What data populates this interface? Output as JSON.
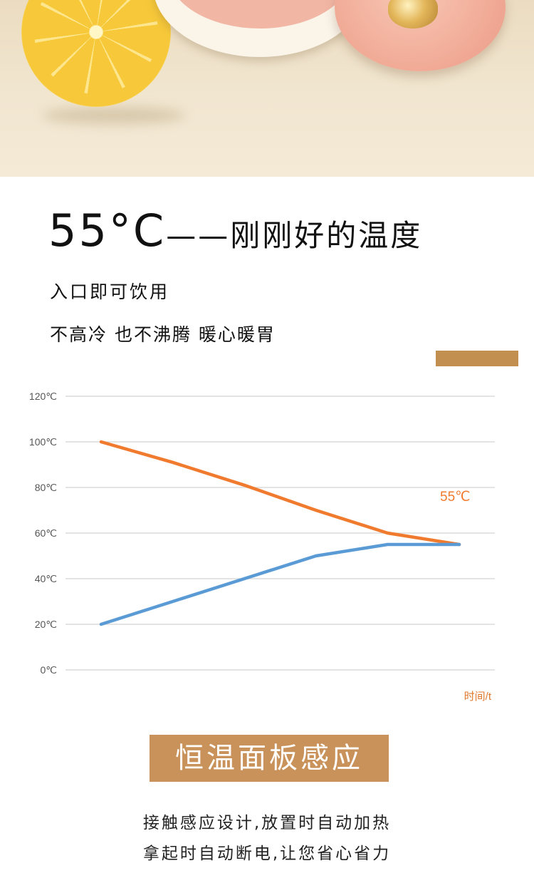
{
  "headline": {
    "temp": "55°C",
    "dash": "——",
    "text": "刚刚好的温度"
  },
  "subtitle_1": "入口即可饮用",
  "subtitle_2": "不高冷 也不沸腾 暖心暖胃",
  "chart_data": {
    "type": "line",
    "y_ticks": [
      "120℃",
      "100℃",
      "80℃",
      "60℃",
      "40℃",
      "20℃",
      "0℃"
    ],
    "ylim": [
      0,
      120
    ],
    "xlim": [
      0,
      5
    ],
    "xlabel": "时间/t",
    "annotation": "55℃",
    "grid": true,
    "series": [
      {
        "color": "#f07a2e",
        "x": [
          0,
          1,
          2,
          3,
          4,
          5
        ],
        "y": [
          100,
          91,
          81,
          70,
          60,
          55
        ]
      },
      {
        "color": "#5b9bd5",
        "x": [
          0,
          1,
          2,
          3,
          4,
          5
        ],
        "y": [
          20,
          30,
          40,
          50,
          55,
          55
        ]
      }
    ]
  },
  "feature_badge": "恒温面板感应",
  "desc_line_1": "接触感应设计,放置时自动加热",
  "desc_line_2": "拿起时自动断电,让您省心省力"
}
